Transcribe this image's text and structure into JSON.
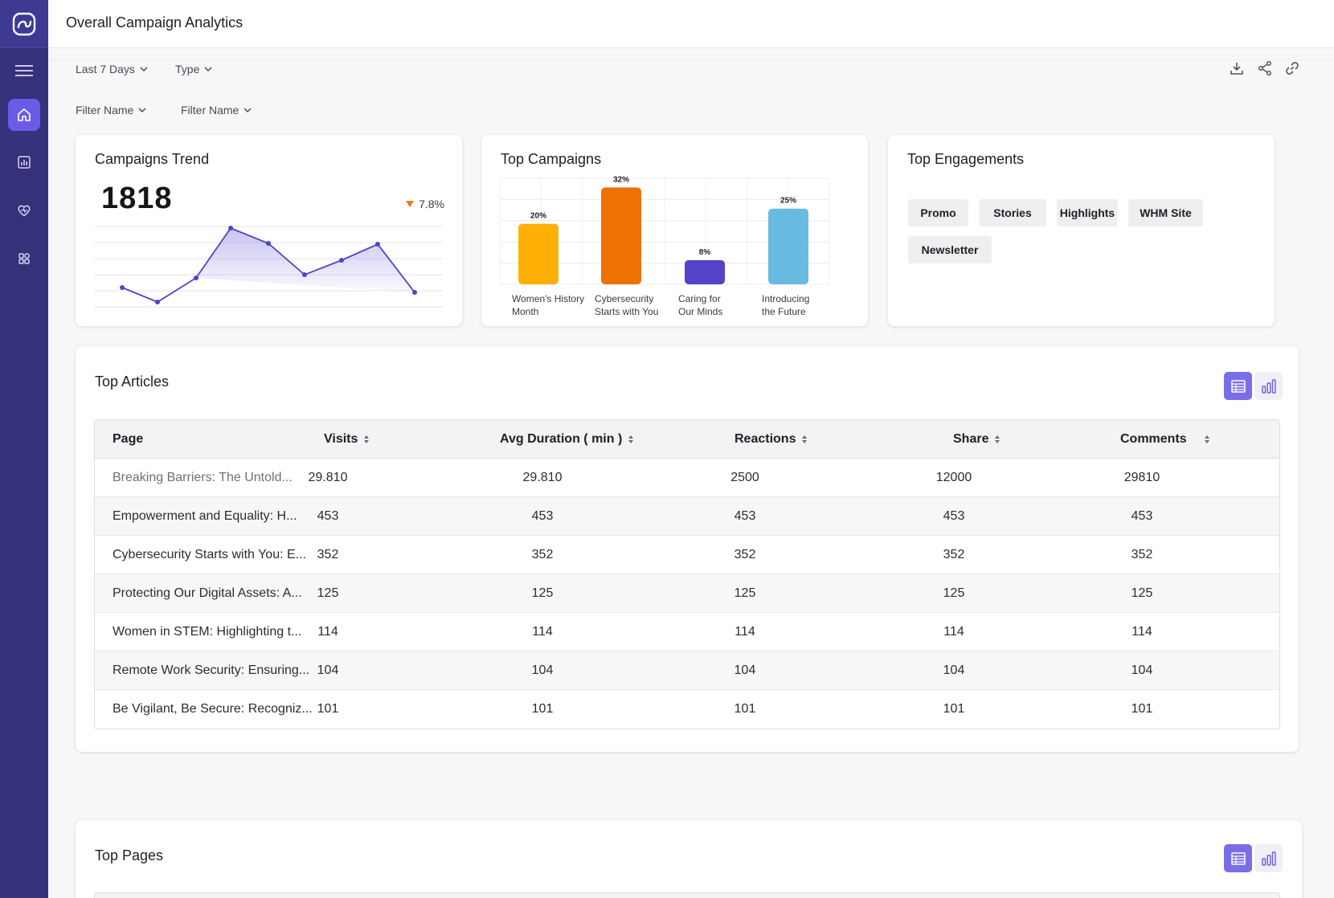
{
  "header": {
    "title": "Overall Campaign Analytics"
  },
  "filters": {
    "range": "Last 7 Days",
    "type": "Type",
    "filter1": "Filter Name",
    "filter2": "Filter Name"
  },
  "sidebar": {
    "items": [
      "menu-icon",
      "home-icon",
      "chart-icon",
      "heart-icon",
      "apps-icon"
    ],
    "active": "home-icon"
  },
  "trend": {
    "title": "Campaigns Trend",
    "value": "1818",
    "delta": "7.8%",
    "delta_color": "#ef7d0f",
    "line_color": "#4e44c9"
  },
  "chart_data": {
    "type": "bar",
    "title": "Top Campaigns",
    "categories": [
      "Women's History Month",
      "Cybersecurity Starts with You",
      "Caring for Our Minds",
      "Introducing the Future"
    ],
    "values": [
      20,
      32,
      8,
      25
    ],
    "data_labels": [
      "20%",
      "32%",
      "8%",
      "25%"
    ],
    "label_lines": [
      [
        "Women's History",
        "Month"
      ],
      [
        "Cybersecurity",
        "Starts with You"
      ],
      [
        "Caring for",
        "Our Minds"
      ],
      [
        "Introducing",
        "the Future"
      ]
    ],
    "colors": [
      "#ffb007",
      "#ee7203",
      "#5243c7",
      "#67bbe0"
    ],
    "ylim": [
      0,
      35
    ],
    "grid": true
  },
  "engagements": {
    "title": "Top Engagements",
    "tags": [
      "Promo",
      "Stories",
      "Highlights",
      "WHM Site",
      "Newsletter"
    ]
  },
  "articles": {
    "title": "Top Articles",
    "columns": [
      "Page",
      "Visits",
      "Avg Duration ( min )",
      "Reactions",
      "Share",
      "Comments"
    ],
    "rows": [
      [
        "Breaking Barriers: The Untold...",
        "29.810",
        "29.810",
        "2500",
        "12000",
        "29810"
      ],
      [
        "Empowerment and Equality: H...",
        "453",
        "453",
        "453",
        "453",
        "453"
      ],
      [
        "Cybersecurity Starts with You: E...",
        "352",
        "352",
        "352",
        "352",
        "352"
      ],
      [
        "Protecting Our Digital Assets: A...",
        "125",
        "125",
        "125",
        "125",
        "125"
      ],
      [
        "Women in STEM: Highlighting t...",
        "114",
        "114",
        "114",
        "114",
        "114"
      ],
      [
        "Remote Work Security: Ensuring...",
        "104",
        "104",
        "104",
        "104",
        "104"
      ],
      [
        "Be Vigilant, Be Secure: Recogniz...",
        "101",
        "101",
        "101",
        "101",
        "101"
      ]
    ]
  },
  "pages": {
    "title": "Top Pages"
  },
  "colors": {
    "sidebar": "#35317a",
    "accent": "#7a6ee8"
  }
}
